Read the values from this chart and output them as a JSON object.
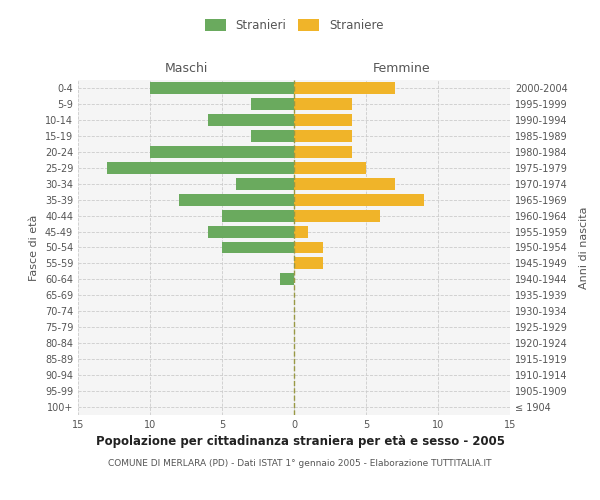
{
  "age_groups": [
    "100+",
    "95-99",
    "90-94",
    "85-89",
    "80-84",
    "75-79",
    "70-74",
    "65-69",
    "60-64",
    "55-59",
    "50-54",
    "45-49",
    "40-44",
    "35-39",
    "30-34",
    "25-29",
    "20-24",
    "15-19",
    "10-14",
    "5-9",
    "0-4"
  ],
  "birth_years": [
    "≤ 1904",
    "1905-1909",
    "1910-1914",
    "1915-1919",
    "1920-1924",
    "1925-1929",
    "1930-1934",
    "1935-1939",
    "1940-1944",
    "1945-1949",
    "1950-1954",
    "1955-1959",
    "1960-1964",
    "1965-1969",
    "1970-1974",
    "1975-1979",
    "1980-1984",
    "1985-1989",
    "1990-1994",
    "1995-1999",
    "2000-2004"
  ],
  "males": [
    0,
    0,
    0,
    0,
    0,
    0,
    0,
    0,
    1,
    0,
    5,
    6,
    5,
    8,
    4,
    13,
    10,
    3,
    6,
    3,
    10
  ],
  "females": [
    0,
    0,
    0,
    0,
    0,
    0,
    0,
    0,
    0,
    2,
    2,
    1,
    6,
    9,
    7,
    5,
    4,
    4,
    4,
    4,
    7
  ],
  "male_color": "#6aaa5e",
  "female_color": "#f0b429",
  "grid_color": "#cccccc",
  "center_line_color": "#999944",
  "title": "Popolazione per cittadinanza straniera per età e sesso - 2005",
  "subtitle": "COMUNE DI MERLARA (PD) - Dati ISTAT 1° gennaio 2005 - Elaborazione TUTTITALIA.IT",
  "xlabel_left": "Maschi",
  "xlabel_right": "Femmine",
  "ylabel_left": "Fasce di età",
  "ylabel_right": "Anni di nascita",
  "legend_male": "Stranieri",
  "legend_female": "Straniere",
  "xlim": 15,
  "background_color": "#ffffff",
  "plot_bg_color": "#f5f5f5",
  "tick_color": "#aaaaaa",
  "label_color": "#555555"
}
